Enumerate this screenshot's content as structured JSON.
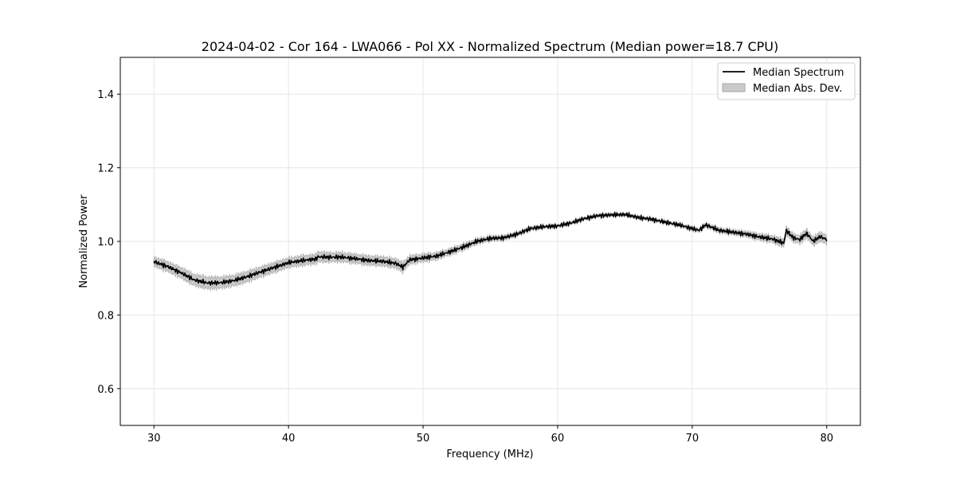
{
  "chart_data": {
    "type": "line",
    "title": "2024-04-02 - Cor 164 - LWA066 - Pol XX - Normalized Spectrum (Median power=18.7 CPU)",
    "xlabel": "Frequency (MHz)",
    "ylabel": "Normalized Power",
    "xlim": [
      27.5,
      82.5
    ],
    "ylim": [
      0.5,
      1.5
    ],
    "xticks": [
      30,
      40,
      50,
      60,
      70,
      80
    ],
    "yticks": [
      0.6,
      0.8,
      1.0,
      1.2,
      1.4
    ],
    "xtick_labels": [
      "30",
      "40",
      "50",
      "60",
      "70",
      "80"
    ],
    "ytick_labels": [
      "0.6",
      "0.8",
      "1.0",
      "1.2",
      "1.4"
    ],
    "grid": true,
    "legend_position": "upper-right",
    "legend": [
      "Median Spectrum",
      "Median Abs. Dev."
    ],
    "series": [
      {
        "name": "Median Spectrum",
        "style": "line",
        "x": [
          30,
          31,
          32,
          33,
          34,
          35,
          36,
          37,
          38,
          39,
          40,
          41,
          42,
          42.2,
          43,
          44,
          45,
          46,
          47,
          48,
          48.5,
          49,
          50,
          51,
          52,
          53,
          54,
          55,
          56,
          57,
          58,
          59,
          60,
          61,
          62,
          63,
          64,
          65,
          66,
          67,
          68,
          69,
          70,
          70.5,
          71,
          72,
          73,
          74,
          75,
          76,
          76.8,
          77,
          77.5,
          78,
          78.5,
          79,
          79.5,
          80
        ],
        "values": [
          0.945,
          0.932,
          0.915,
          0.895,
          0.887,
          0.888,
          0.894,
          0.905,
          0.918,
          0.93,
          0.942,
          0.948,
          0.952,
          0.958,
          0.957,
          0.957,
          0.953,
          0.948,
          0.946,
          0.94,
          0.93,
          0.95,
          0.955,
          0.96,
          0.972,
          0.985,
          1.0,
          1.008,
          1.01,
          1.02,
          1.035,
          1.04,
          1.042,
          1.05,
          1.062,
          1.07,
          1.072,
          1.073,
          1.065,
          1.06,
          1.052,
          1.045,
          1.035,
          1.03,
          1.045,
          1.03,
          1.025,
          1.02,
          1.012,
          1.006,
          0.995,
          1.03,
          1.01,
          1.005,
          1.022,
          1.0,
          1.013,
          1.005
        ]
      },
      {
        "name": "Median Abs. Dev.",
        "style": "band",
        "halfwidth": [
          0.012,
          0.013,
          0.014,
          0.015,
          0.016,
          0.015,
          0.014,
          0.014,
          0.013,
          0.013,
          0.012,
          0.013,
          0.012,
          0.014,
          0.012,
          0.012,
          0.012,
          0.012,
          0.012,
          0.012,
          0.013,
          0.011,
          0.01,
          0.009,
          0.008,
          0.008,
          0.007,
          0.006,
          0.006,
          0.005,
          0.005,
          0.004,
          0.004,
          0.004,
          0.004,
          0.004,
          0.004,
          0.004,
          0.004,
          0.004,
          0.004,
          0.004,
          0.005,
          0.005,
          0.005,
          0.006,
          0.006,
          0.007,
          0.008,
          0.009,
          0.01,
          0.01,
          0.01,
          0.011,
          0.011,
          0.011,
          0.012,
          0.012
        ]
      }
    ],
    "colors": {
      "line": "#000000",
      "band_fill": "#c9c9c9",
      "band_stroke": "#a8a8a8",
      "grid": "#e6e6e6",
      "axes": "#000000"
    }
  }
}
